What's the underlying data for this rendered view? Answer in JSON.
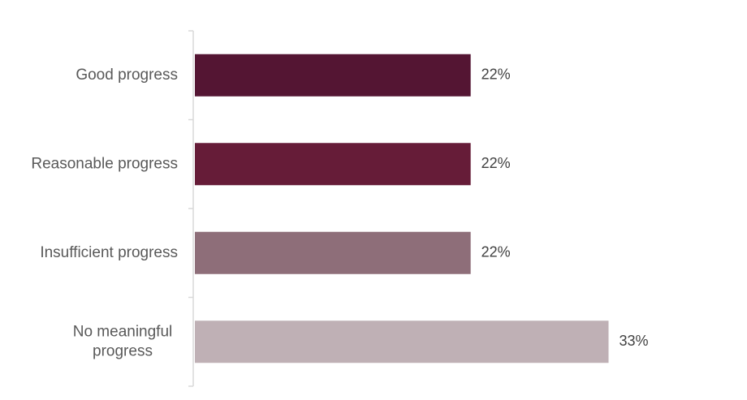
{
  "chart_data": {
    "type": "bar",
    "orientation": "horizontal",
    "title": "",
    "xlabel": "",
    "ylabel": "",
    "categories": [
      [
        "Good progress"
      ],
      [
        "Reasonable progress"
      ],
      [
        "Insufficient progress"
      ],
      [
        "No meaningful",
        "progress"
      ]
    ],
    "values": [
      22,
      22,
      22,
      33
    ],
    "value_labels": [
      "22%",
      "22%",
      "22%",
      "33%"
    ],
    "unit": "%",
    "xlim": [
      0,
      66
    ],
    "grid": false,
    "legend": "none",
    "colors": [
      "#541533",
      "#661c38",
      "#8e6e79",
      "#bfb0b5"
    ]
  }
}
